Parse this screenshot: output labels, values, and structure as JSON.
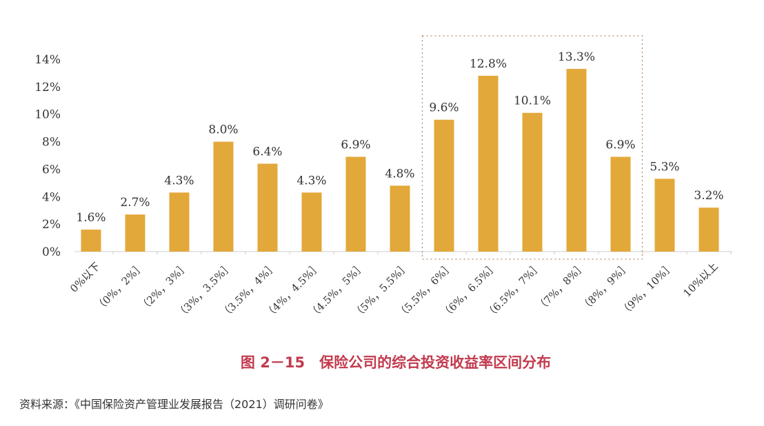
{
  "chart_data": {
    "type": "bar",
    "title": "图 2－15　保险公司的综合投资收益率区间分布",
    "source": "资料来源：《中国保险资产管理业发展报告（2021）调研问卷》",
    "categories": [
      "0%以下",
      "（0%，2%］",
      "（2%，3%］",
      "（3%，3.5%］",
      "（3.5%，4%］",
      "（4%，4.5%］",
      "（4.5%，5%］",
      "（5%，5.5%］",
      "（5.5%，6%］",
      "（6%，6.5%］",
      "（6.5%，7%］",
      "（7%，8%］",
      "（8%，9%］",
      "（9%，10%］",
      "10%以上"
    ],
    "values": [
      1.6,
      2.7,
      4.3,
      8.0,
      6.4,
      4.3,
      6.9,
      4.8,
      9.6,
      12.8,
      10.1,
      13.3,
      6.9,
      5.3,
      3.2
    ],
    "data_labels": [
      "1.6%",
      "2.7%",
      "4.3%",
      "8.0%",
      "6.4%",
      "4.3%",
      "6.9%",
      "4.8%",
      "9.6%",
      "12.8%",
      "10.1%",
      "13.3%",
      "6.9%",
      "5.3%",
      "3.2%"
    ],
    "yticks": [
      "0%",
      "2%",
      "4%",
      "6%",
      "8%",
      "10%",
      "12%",
      "14%"
    ],
    "ylim": [
      0,
      14
    ],
    "grid": false,
    "legend": "none",
    "highlight_range": [
      "（5.5%，6%］",
      "（8%，9%］"
    ],
    "bar_color": "#e3a83a",
    "title_color": "#c23a4e"
  }
}
